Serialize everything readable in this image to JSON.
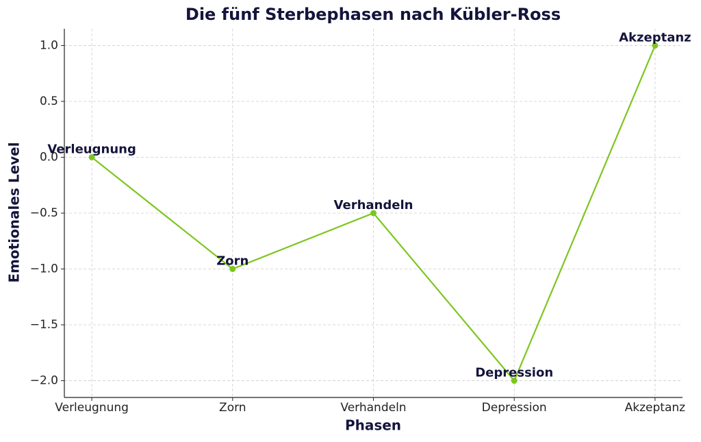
{
  "chart_data": {
    "type": "line",
    "title": "Die fünf Sterbephasen nach Kübler-Ross",
    "x_label": "Phasen",
    "y_label": "Emotionales Level",
    "categories": [
      "Verleugnung",
      "Zorn",
      "Verhandeln",
      "Depression",
      "Akzeptanz"
    ],
    "values": [
      0,
      -1,
      -0.5,
      -2,
      1
    ],
    "color": "#7cc61f",
    "ylim": [
      -2.15,
      1.15
    ],
    "yticks": [
      {
        "value": -2,
        "label": "−2.0"
      },
      {
        "value": -1.5,
        "label": "−1.5"
      },
      {
        "value": -1,
        "label": "−1.0"
      },
      {
        "value": -0.5,
        "label": "−0.5"
      },
      {
        "value": 0,
        "label": "0.0"
      },
      {
        "value": 0.5,
        "label": "0.5"
      },
      {
        "value": 1,
        "label": "1.0"
      }
    ],
    "grid": true
  }
}
